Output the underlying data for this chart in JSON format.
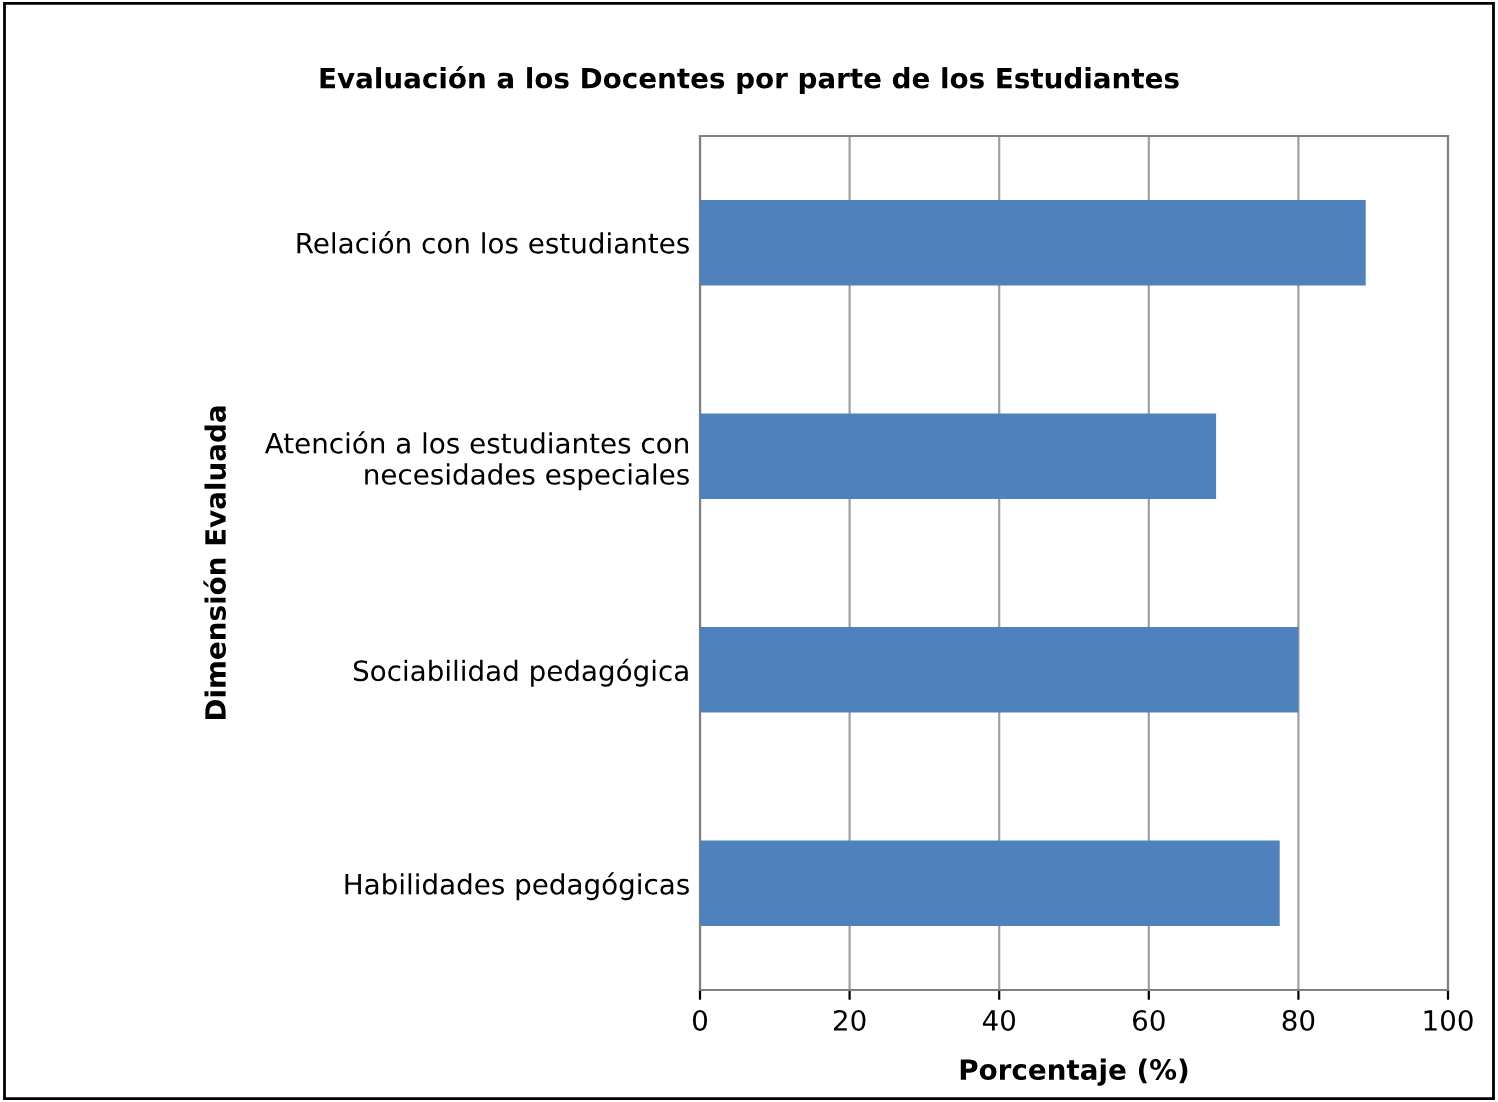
{
  "chart_data": {
    "type": "bar",
    "orientation": "horizontal",
    "title": "Evaluación a los Docentes por parte de los Estudiantes",
    "xlabel": "Porcentaje (%)",
    "ylabel": "Dimensión Evaluada",
    "categories": [
      "Relación con los estudiantes",
      "Atención a los estudiantes con\nnecesidades especiales",
      "Sociabilidad pedagógica",
      "Habilidades pedagógicas"
    ],
    "values": [
      89,
      69,
      80,
      77.5
    ],
    "color": "#4f81bd",
    "xlim": [
      0,
      100
    ],
    "xticks": [
      0,
      20,
      40,
      60,
      80,
      100
    ],
    "grid": "x",
    "legend": false
  }
}
